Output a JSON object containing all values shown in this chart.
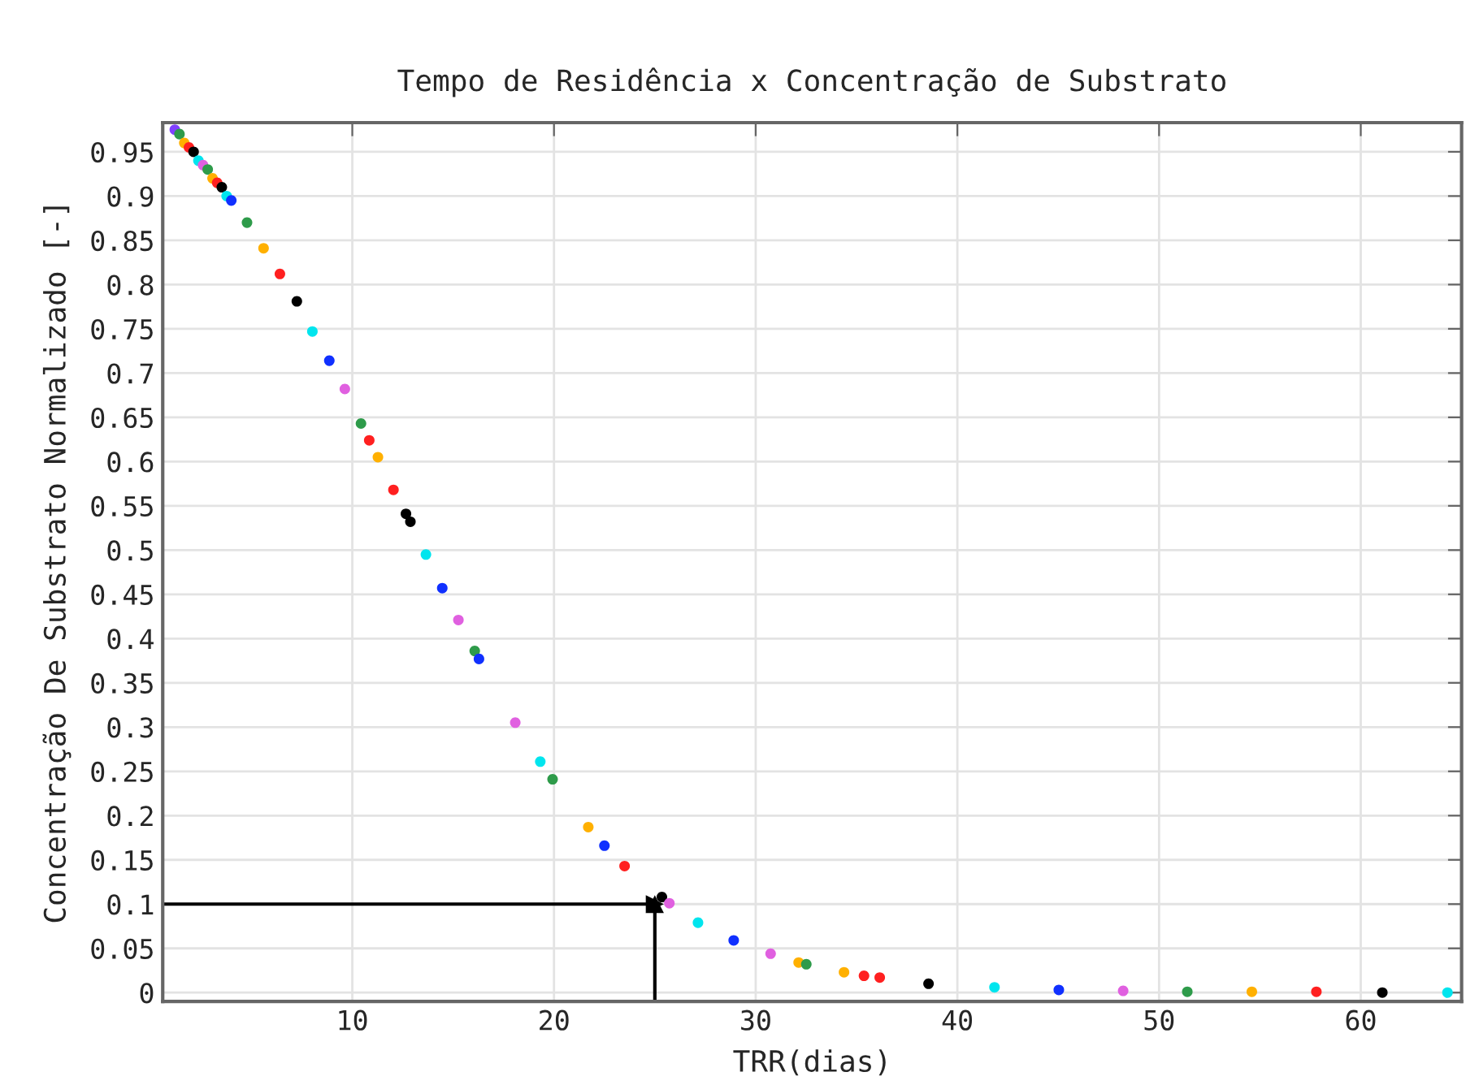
{
  "chart_data": {
    "type": "scatter",
    "title": "Tempo de Residência x Concentração de Substrato",
    "xlabel": "TRR(dias)",
    "ylabel": "Concentração De Substrato Normalizado [-]",
    "x": [
      1.2,
      1.43,
      1.67,
      1.9,
      2.13,
      2.37,
      2.6,
      2.83,
      3.07,
      3.3,
      3.53,
      3.77,
      4.0,
      4.78,
      5.6,
      6.41,
      7.25,
      8.02,
      8.86,
      9.63,
      10.43,
      10.84,
      11.27,
      12.04,
      12.66,
      12.88,
      13.65,
      14.46,
      15.26,
      16.07,
      16.28,
      18.08,
      19.32,
      19.93,
      21.7,
      22.5,
      23.5,
      25.35,
      25.72,
      27.14,
      28.91,
      30.74,
      32.13,
      32.51,
      34.38,
      35.37,
      36.15,
      38.57,
      41.84,
      45.03,
      48.22,
      51.4,
      54.6,
      57.8,
      61.07,
      64.3
    ],
    "series": [
      {
        "values": [
          0.975,
          0.97,
          0.96,
          0.955,
          0.95,
          0.94,
          0.935,
          0.93,
          0.92,
          0.915,
          0.91,
          0.9,
          0.895,
          0.87,
          0.841,
          0.812,
          0.781,
          0.747,
          0.714,
          0.682,
          0.643,
          0.624,
          0.605,
          0.568,
          0.541,
          0.532,
          0.495,
          0.457,
          0.421,
          0.386,
          0.377,
          0.305,
          0.261,
          0.241,
          0.187,
          0.166,
          0.143,
          0.108,
          0.101,
          0.079,
          0.059,
          0.044,
          0.034,
          0.032,
          0.023,
          0.019,
          0.017,
          0.01,
          0.006,
          0.003,
          0.002,
          0.001,
          0.001,
          0.001,
          0.0,
          0.0
        ],
        "colors": [
          "#8040ff",
          "#2e9b4a",
          "#ffb000",
          "#ff2020",
          "#000000",
          "#00e5ee",
          "#e060e0",
          "#2e9b4a",
          "#ffb000",
          "#ff2020",
          "#000000",
          "#00e5ee",
          "#1030ff",
          "#2e9b4a",
          "#ffb000",
          "#ff2020",
          "#000000",
          "#00e5ee",
          "#1030ff",
          "#e060e0",
          "#2e9b4a",
          "#ff2020",
          "#ffb000",
          "#ff2020",
          "#000000",
          "#000000",
          "#00e5ee",
          "#1030ff",
          "#e060e0",
          "#2e9b4a",
          "#1030ff",
          "#e060e0",
          "#00e5ee",
          "#2e9b4a",
          "#ffb000",
          "#1030ff",
          "#ff2020",
          "#000000",
          "#e060e0",
          "#00e5ee",
          "#1030ff",
          "#e060e0",
          "#ffb000",
          "#2e9b4a",
          "#ffb000",
          "#ff2020",
          "#ff2020",
          "#000000",
          "#00e5ee",
          "#1030ff",
          "#e060e0",
          "#2e9b4a",
          "#ffb000",
          "#ff2020",
          "#000000",
          "#00e5ee"
        ]
      }
    ],
    "xlim": [
      0.6,
      65
    ],
    "xticks": [
      10,
      20,
      30,
      40,
      50,
      60
    ],
    "ylim": [
      -0.01,
      0.983
    ],
    "yticks": [
      0,
      0.05,
      0.1,
      0.15,
      0.2,
      0.25,
      0.3,
      0.35,
      0.4,
      0.45,
      0.5,
      0.55,
      0.6,
      0.65,
      0.7,
      0.75,
      0.8,
      0.85,
      0.9,
      0.95
    ],
    "ref_lines": [
      {
        "axis": "y",
        "value": 0.1,
        "color": "#000000",
        "line_style": "solid"
      },
      {
        "axis": "x",
        "value": 25,
        "color": "#000000",
        "line_style": "solid"
      }
    ],
    "grid": true,
    "marker": "circle"
  }
}
